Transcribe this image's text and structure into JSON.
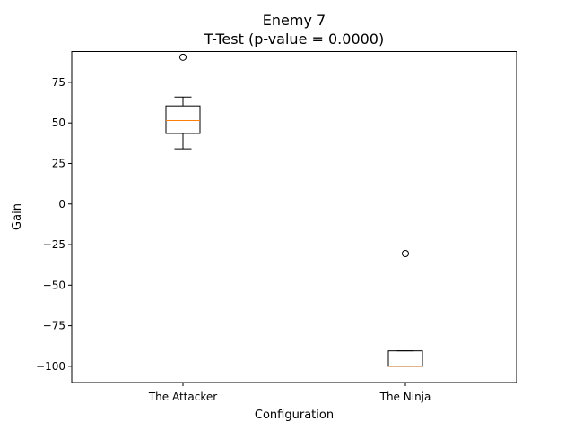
{
  "chart_data": {
    "type": "box",
    "title": "Enemy 7",
    "subtitle": "T-Test (p-value = 0.0000)",
    "xlabel": "Configuration",
    "ylabel": "Gain",
    "categories": [
      "The Attacker",
      "The Ninja"
    ],
    "ylim": [
      -110,
      94
    ],
    "yticks": [
      -100,
      -75,
      -50,
      -25,
      0,
      25,
      50,
      75
    ],
    "ytick_labels": [
      "−100",
      "−75",
      "−50",
      "−25",
      "0",
      "25",
      "50",
      "75"
    ],
    "grid": false,
    "boxes": [
      {
        "category": "The Attacker",
        "whisker_low": 34,
        "q1": 43.5,
        "median": 51.5,
        "q3": 60.5,
        "whisker_high": 66,
        "outliers": [
          90.5
        ]
      },
      {
        "category": "The Ninja",
        "whisker_low": -100,
        "q1": -100,
        "median": -100,
        "q3": -90.5,
        "whisker_high": -90.5,
        "outliers": [
          -30.5
        ]
      }
    ],
    "colors": {
      "box": "#000000",
      "median": "#ff7f0e",
      "axes": "#000000",
      "background": "#ffffff"
    }
  }
}
